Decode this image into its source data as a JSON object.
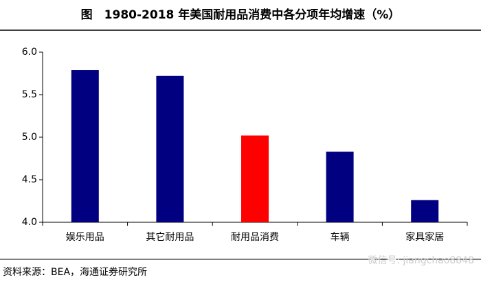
{
  "chart_data": {
    "type": "bar",
    "title": "图　1980-2018 年美国耐用品消费中各分项年均增速（%）",
    "categories": [
      "娱乐用品",
      "其它耐用品",
      "耐用品消费",
      "车辆",
      "家具家居"
    ],
    "values": [
      5.79,
      5.72,
      5.02,
      4.83,
      4.26
    ],
    "colors": [
      "#000080",
      "#000080",
      "#ff0000",
      "#000080",
      "#000080"
    ],
    "ylim": [
      4,
      6
    ],
    "yticks": [
      {
        "value": 4,
        "label": "4.0"
      },
      {
        "value": 4.5,
        "label": "4.5"
      },
      {
        "value": 5,
        "label": "5.0"
      },
      {
        "value": 5.5,
        "label": "5.5"
      },
      {
        "value": 6,
        "label": "6.0"
      }
    ],
    "grid": false,
    "source": "资料来源：BEA，海通证券研究所",
    "watermark": "微信号: jiangchao8848"
  }
}
